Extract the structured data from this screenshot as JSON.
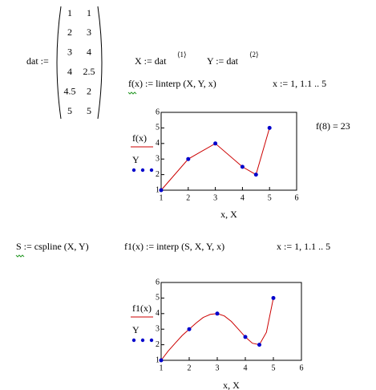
{
  "matrix": {
    "label": "dat :=",
    "rows": [
      [
        1,
        1
      ],
      [
        2,
        3
      ],
      [
        3,
        4
      ],
      [
        4,
        2.5
      ],
      [
        4.5,
        2
      ],
      [
        5,
        5
      ]
    ]
  },
  "definitions": [
    {
      "text": "X := dat",
      "sup": "⟨1⟩"
    },
    {
      "text": "Y := dat",
      "sup": "⟨2⟩"
    }
  ],
  "formulas": {
    "f_def": "f(x) := linterp (X, Y, x)",
    "range1": "x := 1, 1.1 .. 5",
    "result": "f(8) = 23",
    "s_def": "S := cspline (X, Y)",
    "f1_def": "f1(x) := interp (S, X, Y, x)",
    "range2": "x := 1, 1.1 .. 5"
  },
  "chart_data": [
    {
      "type": "line",
      "x_label": "x, X",
      "xlim": [
        1,
        6
      ],
      "ylim": [
        1,
        6
      ],
      "xticks": [
        1,
        2,
        3,
        4,
        5,
        6
      ],
      "yticks": [
        1,
        2,
        3,
        4,
        5,
        6
      ],
      "series": [
        {
          "name": "f(x)",
          "color": "#cc0000",
          "style": "line",
          "x": [
            1,
            2,
            3,
            4,
            4.5,
            5
          ],
          "values": [
            1,
            3,
            4,
            2.5,
            2,
            5
          ]
        },
        {
          "name": "Y",
          "color": "#0000cc",
          "style": "points",
          "x": [
            1,
            2,
            3,
            4,
            4.5,
            5
          ],
          "values": [
            1,
            3,
            4,
            2.5,
            2,
            5
          ]
        }
      ]
    },
    {
      "type": "line",
      "x_label": "x, X",
      "xlim": [
        1,
        6
      ],
      "ylim": [
        1,
        6
      ],
      "xticks": [
        1,
        2,
        3,
        4,
        5,
        6
      ],
      "yticks": [
        1,
        2,
        3,
        4,
        5,
        6
      ],
      "series": [
        {
          "name": "f1(x)",
          "color": "#cc0000",
          "style": "line",
          "x": [
            1,
            1.25,
            1.5,
            1.75,
            2,
            2.25,
            2.5,
            2.75,
            3,
            3.25,
            3.5,
            3.75,
            4,
            4.25,
            4.5,
            4.75,
            5
          ],
          "values": [
            1,
            1.6,
            2.1,
            2.6,
            3,
            3.4,
            3.75,
            3.95,
            4,
            3.85,
            3.5,
            3.0,
            2.5,
            2.1,
            2,
            2.8,
            5
          ]
        },
        {
          "name": "Y",
          "color": "#0000cc",
          "style": "points",
          "x": [
            1,
            2,
            3,
            4,
            4.5,
            5
          ],
          "values": [
            1,
            3,
            4,
            2.5,
            2,
            5
          ]
        }
      ]
    }
  ]
}
